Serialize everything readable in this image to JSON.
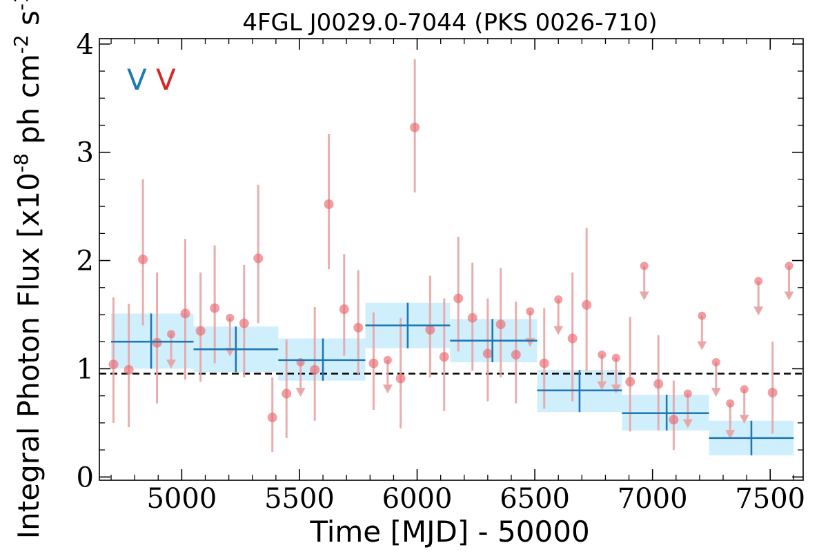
{
  "chart_data": {
    "type": "scatter",
    "title": "4FGL J0029.0-7044 (PKS 0026-710)",
    "xlabel": "Time [MJD] - 50000",
    "ylabel": "Integral Photon Flux [x10^-8 ph cm^-2 s^-1]",
    "xlim": [
      4650,
      7640
    ],
    "ylim": [
      -0.03,
      4.05
    ],
    "xticks": [
      5000,
      5500,
      6000,
      6500,
      7000,
      7500
    ],
    "yticks": [
      0,
      1,
      2,
      3,
      4
    ],
    "grid": false,
    "reference_line": {
      "y": 0.955,
      "style": "dashed"
    },
    "corner_labels": [
      {
        "text": "V",
        "color": "#1f77b4"
      },
      {
        "text": "V",
        "color": "#d62728"
      }
    ],
    "colors": {
      "bins": "#1f77b4",
      "bin_bands": "#cdeefc",
      "points": "#e9696f",
      "errors": "#e8a4a4"
    },
    "series": [
      {
        "kind": "binned",
        "points": [
          {
            "x": 4870,
            "xlo": 4700,
            "xhi": 5050,
            "y": 1.25,
            "ylo": 1.0,
            "yhi": 1.51
          },
          {
            "x": 5230,
            "xlo": 5050,
            "xhi": 5410,
            "y": 1.18,
            "ylo": 0.97,
            "yhi": 1.39
          },
          {
            "x": 5600,
            "xlo": 5410,
            "xhi": 5780,
            "y": 1.08,
            "ylo": 0.89,
            "yhi": 1.28
          },
          {
            "x": 5960,
            "xlo": 5780,
            "xhi": 6140,
            "y": 1.4,
            "ylo": 1.19,
            "yhi": 1.61
          },
          {
            "x": 6320,
            "xlo": 6140,
            "xhi": 6510,
            "y": 1.26,
            "ylo": 1.06,
            "yhi": 1.46
          },
          {
            "x": 6690,
            "xlo": 6510,
            "xhi": 6870,
            "y": 0.8,
            "ylo": 0.6,
            "yhi": 0.99
          },
          {
            "x": 7060,
            "xlo": 6870,
            "xhi": 7240,
            "y": 0.59,
            "ylo": 0.43,
            "yhi": 0.76
          },
          {
            "x": 7420,
            "xlo": 7240,
            "xhi": 7600,
            "y": 0.36,
            "ylo": 0.2,
            "yhi": 0.52
          }
        ]
      },
      {
        "kind": "points",
        "points": [
          {
            "x": 4710,
            "y": 1.04,
            "ylo": 0.5,
            "yhi": 1.66
          },
          {
            "x": 4775,
            "y": 0.99,
            "ylo": 0.46,
            "yhi": 1.6
          },
          {
            "x": 4835,
            "y": 2.01,
            "ylo": 1.4,
            "yhi": 2.75
          },
          {
            "x": 4895,
            "y": 1.24,
            "ylo": 0.68,
            "yhi": 1.89
          },
          {
            "x": 5015,
            "y": 1.51,
            "ylo": 0.9,
            "yhi": 2.2
          },
          {
            "x": 5080,
            "y": 1.35,
            "ylo": 0.88,
            "yhi": 1.89
          },
          {
            "x": 5140,
            "y": 1.56,
            "ylo": 1.05,
            "yhi": 2.14
          },
          {
            "x": 5265,
            "y": 1.42,
            "ylo": 0.92,
            "yhi": 1.96
          },
          {
            "x": 5325,
            "y": 2.02,
            "ylo": 1.42,
            "yhi": 2.7
          },
          {
            "x": 5385,
            "y": 0.55,
            "ylo": 0.23,
            "yhi": 0.92
          },
          {
            "x": 5445,
            "y": 0.77,
            "ylo": 0.36,
            "yhi": 1.27
          },
          {
            "x": 5565,
            "y": 0.99,
            "ylo": 0.52,
            "yhi": 1.57
          },
          {
            "x": 5625,
            "y": 2.52,
            "ylo": 1.92,
            "yhi": 3.17
          },
          {
            "x": 5690,
            "y": 1.55,
            "ylo": 1.12,
            "yhi": 2.06
          },
          {
            "x": 5750,
            "y": 1.38,
            "ylo": 0.95,
            "yhi": 1.91
          },
          {
            "x": 5815,
            "y": 1.05,
            "ylo": 0.62,
            "yhi": 1.52
          },
          {
            "x": 5930,
            "y": 0.91,
            "ylo": 0.45,
            "yhi": 1.47
          },
          {
            "x": 5990,
            "y": 3.23,
            "ylo": 2.63,
            "yhi": 3.86
          },
          {
            "x": 6055,
            "y": 1.36,
            "ylo": 0.92,
            "yhi": 1.86
          },
          {
            "x": 6115,
            "y": 1.11,
            "ylo": 0.61,
            "yhi": 1.65
          },
          {
            "x": 6175,
            "y": 1.65,
            "ylo": 1.16,
            "yhi": 2.22
          },
          {
            "x": 6235,
            "y": 1.47,
            "ylo": 0.98,
            "yhi": 1.98
          },
          {
            "x": 6300,
            "y": 1.14,
            "ylo": 0.7,
            "yhi": 1.65
          },
          {
            "x": 6355,
            "y": 1.41,
            "ylo": 0.92,
            "yhi": 1.93
          },
          {
            "x": 6420,
            "y": 1.13,
            "ylo": 0.68,
            "yhi": 1.62
          },
          {
            "x": 6540,
            "y": 1.05,
            "ylo": 0.63,
            "yhi": 1.56
          },
          {
            "x": 6660,
            "y": 1.28,
            "ylo": 0.7,
            "yhi": 1.89
          },
          {
            "x": 6720,
            "y": 1.59,
            "ylo": 0.98,
            "yhi": 2.3
          },
          {
            "x": 6905,
            "y": 0.88,
            "ylo": 0.42,
            "yhi": 1.48
          },
          {
            "x": 7025,
            "y": 0.86,
            "ylo": 0.43,
            "yhi": 1.31
          },
          {
            "x": 7090,
            "y": 0.53,
            "ylo": 0.25,
            "yhi": 0.89
          },
          {
            "x": 7510,
            "y": 0.78,
            "ylo": 0.4,
            "yhi": 1.25
          }
        ]
      },
      {
        "kind": "upper_limits",
        "points": [
          {
            "x": 4955,
            "y": 1.32,
            "limit": 1.02
          },
          {
            "x": 5205,
            "y": 1.47,
            "limit": 1.13
          },
          {
            "x": 5505,
            "y": 1.06,
            "limit": 0.76
          },
          {
            "x": 5875,
            "y": 1.08,
            "limit": 0.79
          },
          {
            "x": 6480,
            "y": 1.53,
            "limit": 1.22
          },
          {
            "x": 6600,
            "y": 1.64,
            "limit": 1.33
          },
          {
            "x": 6785,
            "y": 1.13,
            "limit": 0.82
          },
          {
            "x": 6845,
            "y": 1.1,
            "limit": 0.79
          },
          {
            "x": 6965,
            "y": 1.95,
            "limit": 1.65
          },
          {
            "x": 7150,
            "y": 0.77,
            "limit": 0.47
          },
          {
            "x": 7210,
            "y": 1.49,
            "limit": 1.19
          },
          {
            "x": 7270,
            "y": 1.06,
            "limit": 0.76
          },
          {
            "x": 7330,
            "y": 0.68,
            "limit": 0.37
          },
          {
            "x": 7390,
            "y": 0.81,
            "limit": 0.51
          },
          {
            "x": 7450,
            "y": 1.81,
            "limit": 1.51
          },
          {
            "x": 7580,
            "y": 1.95,
            "limit": 1.65
          }
        ]
      }
    ]
  }
}
